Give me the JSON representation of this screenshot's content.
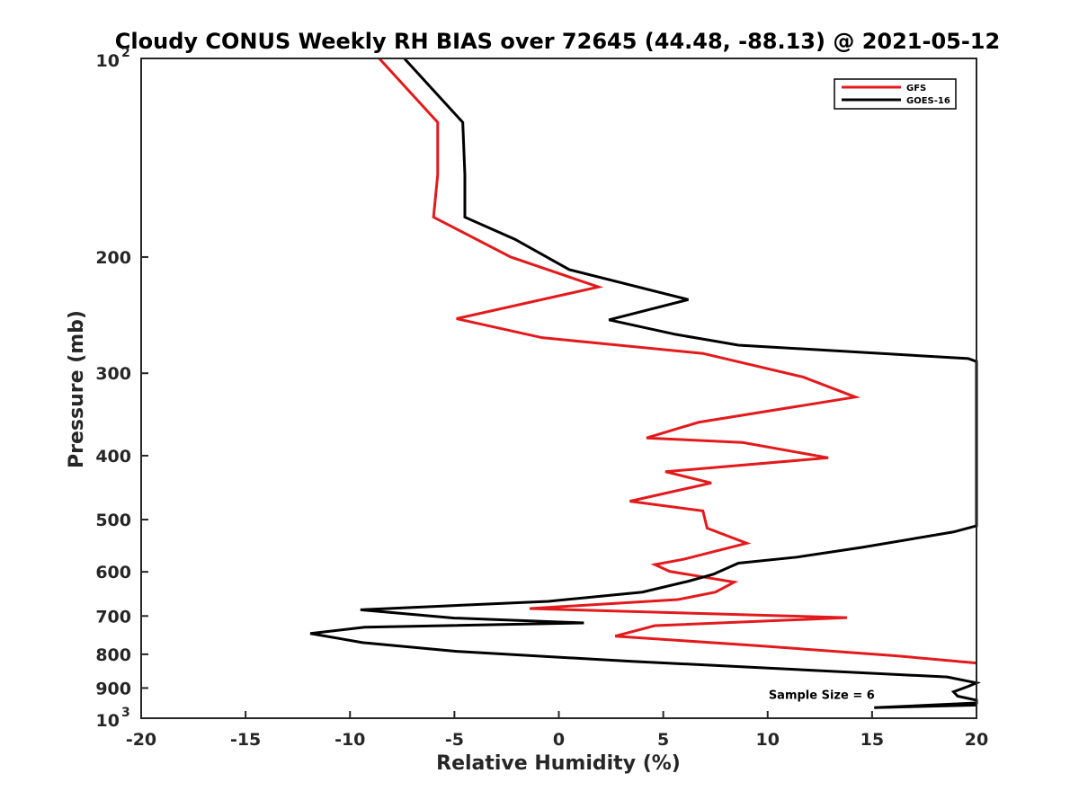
{
  "chart_data": {
    "type": "line",
    "title": "Cloudy CONUS Weekly RH BIAS over 72645 (44.48, -88.13) @ 2021-05-12",
    "xlabel": "Relative Humidity (%)",
    "ylabel": "Pressure (mb)",
    "xlim": [
      -20,
      20
    ],
    "ylim": [
      100,
      1000
    ],
    "y_scale": "log",
    "y_reversed": true,
    "grid": false,
    "legend_position": "top-right",
    "x_ticks": [
      -20,
      -15,
      -10,
      -5,
      0,
      5,
      10,
      15,
      20
    ],
    "x_tick_labels": [
      "-20",
      "-15",
      "-10",
      "-5",
      "0",
      "5",
      "10",
      "15",
      "20"
    ],
    "y_ticks": [
      100,
      200,
      300,
      400,
      500,
      600,
      700,
      800,
      900,
      1000
    ],
    "y_tick_labels": [
      {
        "base": "10",
        "exp": "2"
      },
      {
        "text": "200"
      },
      {
        "text": "300"
      },
      {
        "text": "400"
      },
      {
        "text": "500"
      },
      {
        "text": "600"
      },
      {
        "text": "700"
      },
      {
        "text": "800"
      },
      {
        "text": "900"
      },
      {
        "base": "10",
        "exp": "3"
      }
    ],
    "series": [
      {
        "name": "GFS",
        "color": "#e31a1c",
        "points": [
          [
            -8.6,
            100
          ],
          [
            -5.8,
            125
          ],
          [
            -5.8,
            150
          ],
          [
            -6.0,
            174
          ],
          [
            -2.3,
            200
          ],
          [
            1.9,
            222
          ],
          [
            -4.9,
            248
          ],
          [
            -0.8,
            265
          ],
          [
            6.9,
            280
          ],
          [
            11.7,
            304
          ],
          [
            14.2,
            326
          ],
          [
            6.7,
            356
          ],
          [
            4.2,
            376
          ],
          [
            8.8,
            382
          ],
          [
            12.9,
            403
          ],
          [
            5.1,
            423
          ],
          [
            7.3,
            440
          ],
          [
            3.4,
            469
          ],
          [
            6.9,
            485
          ],
          [
            7.1,
            515
          ],
          [
            9.0,
            543
          ],
          [
            6.0,
            574
          ],
          [
            4.6,
            585
          ],
          [
            5.3,
            599
          ],
          [
            8.4,
            622
          ],
          [
            7.5,
            644
          ],
          [
            5.7,
            661
          ],
          [
            -1.4,
            682
          ],
          [
            13.8,
            704
          ],
          [
            4.6,
            724
          ],
          [
            2.7,
            751
          ],
          [
            9.4,
            776
          ],
          [
            16.1,
            804
          ],
          [
            20.0,
            825
          ]
        ]
      },
      {
        "name": "GOES-16",
        "color": "#000000",
        "points": [
          [
            -7.4,
            100
          ],
          [
            -4.6,
            125
          ],
          [
            -4.5,
            150
          ],
          [
            -4.5,
            174
          ],
          [
            -2.1,
            188
          ],
          [
            0.5,
            209
          ],
          [
            6.2,
            232
          ],
          [
            2.4,
            249
          ],
          [
            5.6,
            262
          ],
          [
            8.6,
            272
          ],
          [
            19.6,
            285
          ],
          [
            20.0,
            288
          ],
          [
            20.0,
            511
          ],
          [
            18.9,
            522
          ],
          [
            14.5,
            551
          ],
          [
            11.4,
            570
          ],
          [
            8.6,
            582
          ],
          [
            7.4,
            605
          ],
          [
            6.2,
            620
          ],
          [
            4.0,
            644
          ],
          [
            -0.5,
            665
          ],
          [
            -9.5,
            685
          ],
          [
            -5.0,
            705
          ],
          [
            1.2,
            717
          ],
          [
            -9.3,
            728
          ],
          [
            -11.9,
            744
          ],
          [
            -9.4,
            768
          ],
          [
            -4.9,
            792
          ],
          [
            3.5,
            820
          ],
          [
            18.6,
            866
          ],
          [
            20.0,
            884
          ],
          [
            19.6,
            895
          ],
          [
            18.9,
            912
          ],
          [
            19.1,
            926
          ],
          [
            20.0,
            939
          ],
          [
            20.0,
            948
          ],
          [
            15.1,
            964
          ],
          [
            20.0,
            955
          ]
        ]
      }
    ],
    "annotations": [
      {
        "text": "Sample Size = 6",
        "x": 12.5,
        "y": 920
      }
    ]
  }
}
